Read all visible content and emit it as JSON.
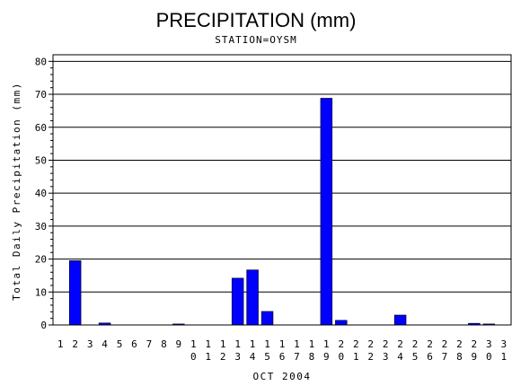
{
  "chart_data": {
    "type": "bar",
    "title": "PRECIPITATION (mm)",
    "subtitle": "STATION=OYSM",
    "xlabel": "OCT 2004",
    "ylabel": "Total Daily Precipitation (mm)",
    "ylim": [
      0,
      82
    ],
    "yticks": [
      0,
      10,
      20,
      30,
      40,
      50,
      60,
      70,
      80
    ],
    "categories": [
      "1",
      "2",
      "3",
      "4",
      "5",
      "6",
      "7",
      "8",
      "9",
      "10",
      "11",
      "12",
      "13",
      "14",
      "15",
      "16",
      "17",
      "18",
      "19",
      "20",
      "21",
      "22",
      "23",
      "24",
      "25",
      "26",
      "27",
      "28",
      "29",
      "30",
      "31"
    ],
    "values": [
      0,
      19.5,
      0,
      0.6,
      0,
      0,
      0,
      0,
      0.3,
      0,
      0,
      0,
      14.2,
      16.7,
      4.1,
      0,
      0,
      0,
      68.8,
      1.4,
      0,
      0,
      0,
      3.0,
      0,
      0,
      0,
      0,
      0.5,
      0.3,
      0
    ],
    "bar_color": "#0000ff",
    "grid": true
  }
}
